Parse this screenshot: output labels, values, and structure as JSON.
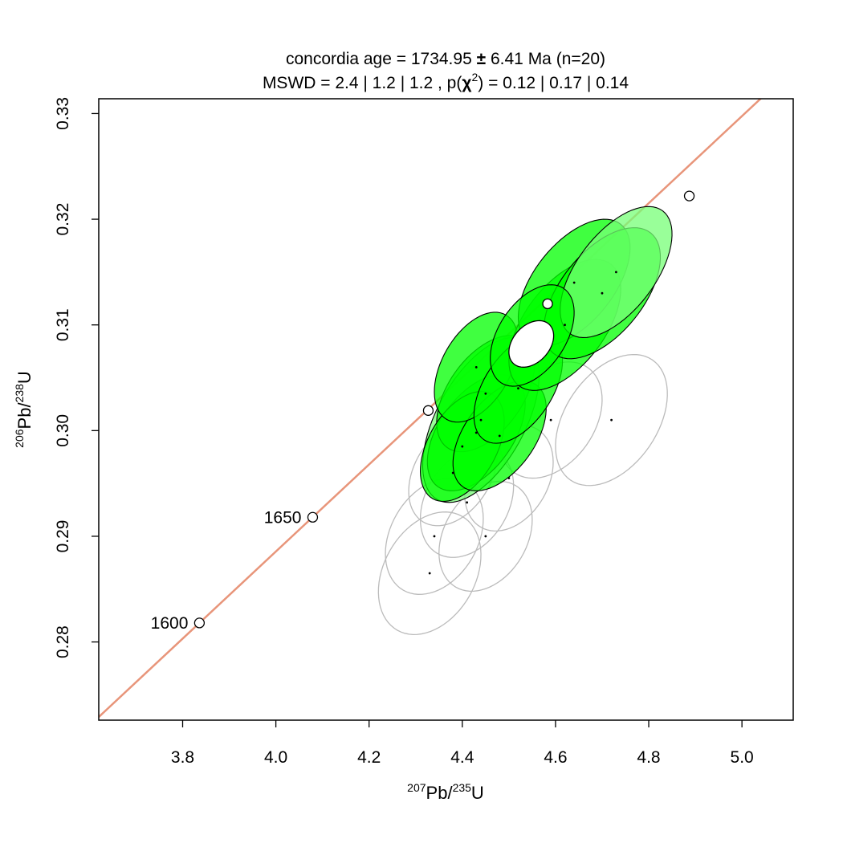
{
  "chart_data": {
    "type": "scatter",
    "title_line1": {
      "prefix": "concordia age = 1734.95",
      "pm": "±",
      "suffix": "6.41 Ma (n=20)"
    },
    "title_line2": {
      "prefix": "MSWD = 2.4 | 1.2 | 1.2 , p(",
      "chi": "χ",
      "chi_exp": "2",
      "suffix": ") = 0.12 | 0.17 | 0.14"
    },
    "xlabel": {
      "mass_num": "207",
      "element": "Pb/",
      "mass_den": "235",
      "tail": "U"
    },
    "ylabel": {
      "mass_num": "206",
      "element": "Pb/",
      "mass_den": "238",
      "tail": "U"
    },
    "xlim": [
      3.62,
      5.11
    ],
    "ylim": [
      0.2726,
      0.3314
    ],
    "x_ticks": [
      "3.8",
      "4.0",
      "4.2",
      "4.4",
      "4.6",
      "4.8",
      "5.0"
    ],
    "y_ticks": [
      "0.28",
      "0.29",
      "0.30",
      "0.31",
      "0.32",
      "0.33"
    ],
    "concordia_color": "#e8957a",
    "age_markers": [
      {
        "age": "1600",
        "x": 3.836,
        "y": 0.2818,
        "show_label": true
      },
      {
        "age": "1650",
        "x": 4.079,
        "y": 0.2918,
        "show_label": true
      },
      {
        "age": "1700",
        "x": 4.327,
        "y": 0.3019,
        "show_label": false
      },
      {
        "age": "1750",
        "x": 4.583,
        "y": 0.312,
        "show_label": false
      },
      {
        "age": "1800",
        "x": 4.887,
        "y": 0.3222,
        "show_label": false
      }
    ],
    "ellipse_fill": "#00ff00",
    "ellipse_fill_light": "#77ff77",
    "rejected_stroke": "#bbbbbb",
    "concordia_ellipse": {
      "x": 4.548,
      "y": 0.3082,
      "sx": 0.048,
      "sy": 0.0022,
      "rho": 0.35
    },
    "points": [
      {
        "x": 4.44,
        "y": 0.301,
        "sx": 0.125,
        "sy": 0.0078,
        "rho": 0.55,
        "kind": "light"
      },
      {
        "x": 4.43,
        "y": 0.2998,
        "sx": 0.105,
        "sy": 0.0055,
        "rho": 0.5,
        "kind": "fill"
      },
      {
        "x": 4.45,
        "y": 0.3035,
        "sx": 0.105,
        "sy": 0.0055,
        "rho": 0.5,
        "kind": "fill"
      },
      {
        "x": 4.4,
        "y": 0.2985,
        "sx": 0.09,
        "sy": 0.0052,
        "rho": 0.45,
        "kind": "fill"
      },
      {
        "x": 4.48,
        "y": 0.2995,
        "sx": 0.1,
        "sy": 0.0052,
        "rho": 0.5,
        "kind": "fill"
      },
      {
        "x": 4.43,
        "y": 0.306,
        "sx": 0.09,
        "sy": 0.0052,
        "rho": 0.45,
        "kind": "fill"
      },
      {
        "x": 4.52,
        "y": 0.304,
        "sx": 0.095,
        "sy": 0.0052,
        "rho": 0.5,
        "kind": "fill"
      },
      {
        "x": 4.62,
        "y": 0.31,
        "sx": 0.12,
        "sy": 0.0062,
        "rho": 0.55,
        "kind": "fill"
      },
      {
        "x": 4.64,
        "y": 0.314,
        "sx": 0.12,
        "sy": 0.006,
        "rho": 0.55,
        "kind": "fill"
      },
      {
        "x": 4.7,
        "y": 0.313,
        "sx": 0.125,
        "sy": 0.0062,
        "rho": 0.55,
        "kind": "fill"
      },
      {
        "x": 4.73,
        "y": 0.315,
        "sx": 0.12,
        "sy": 0.0062,
        "rho": 0.58,
        "kind": "light"
      },
      {
        "x": 4.55,
        "y": 0.309,
        "sx": 0.09,
        "sy": 0.0048,
        "rho": 0.45,
        "kind": "fill"
      },
      {
        "x": 4.33,
        "y": 0.2865,
        "sx": 0.11,
        "sy": 0.0058,
        "rho": 0.3,
        "kind": "rejected"
      },
      {
        "x": 4.34,
        "y": 0.29,
        "sx": 0.105,
        "sy": 0.0055,
        "rho": 0.3,
        "kind": "rejected"
      },
      {
        "x": 4.41,
        "y": 0.2932,
        "sx": 0.1,
        "sy": 0.0052,
        "rho": 0.3,
        "kind": "rejected"
      },
      {
        "x": 4.45,
        "y": 0.29,
        "sx": 0.1,
        "sy": 0.0052,
        "rho": 0.3,
        "kind": "rejected"
      },
      {
        "x": 4.59,
        "y": 0.301,
        "sx": 0.11,
        "sy": 0.0055,
        "rho": 0.35,
        "kind": "rejected"
      },
      {
        "x": 4.72,
        "y": 0.301,
        "sx": 0.12,
        "sy": 0.0062,
        "rho": 0.4,
        "kind": "rejected"
      },
      {
        "x": 4.5,
        "y": 0.2955,
        "sx": 0.095,
        "sy": 0.005,
        "rho": 0.3,
        "kind": "rejected"
      },
      {
        "x": 4.38,
        "y": 0.296,
        "sx": 0.095,
        "sy": 0.005,
        "rho": 0.35,
        "kind": "rejected"
      }
    ]
  }
}
